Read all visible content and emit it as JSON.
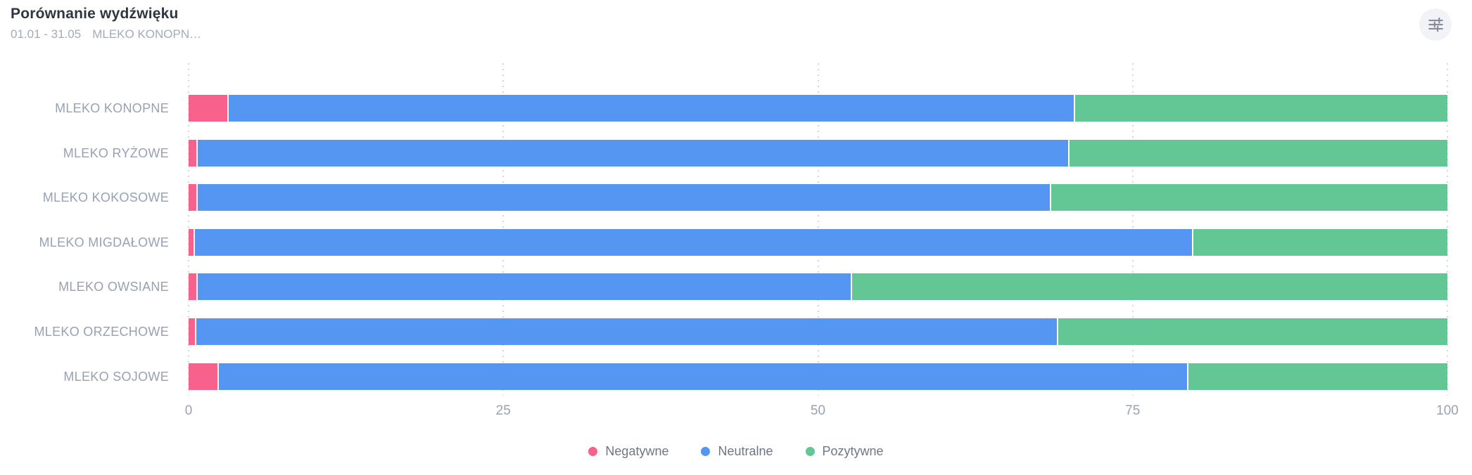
{
  "header": {
    "title": "Porównanie wydźwięku",
    "date_range": "01.01 - 31.05",
    "filter_label": "MLEKO KONOPN…"
  },
  "controls": {
    "settings_icon": "sliders-icon"
  },
  "colors": {
    "negative": "#f8618b",
    "neutral": "#5596f3",
    "positive": "#62c794",
    "gridline": "#d4d8de",
    "axis_text": "#9aa2b2",
    "category_text": "#98a1b3",
    "title_text": "#2f3542",
    "subtitle_text": "#a3abb8",
    "legend_text": "#6e7686",
    "button_bg": "#f1f3f7",
    "icon_color": "#878d98",
    "background": "#ffffff"
  },
  "chart_data": {
    "type": "bar",
    "orientation": "horizontal",
    "stacked": true,
    "title": "Porównanie wydźwięku",
    "categories": [
      "MLEKO KONOPNE",
      "MLEKO RYŻOWE",
      "MLEKO KOKOSOWE",
      "MLEKO MIGDAŁOWE",
      "MLEKO OWSIANE",
      "MLEKO ORZECHOWE",
      "MLEKO SOJOWE"
    ],
    "series": [
      {
        "name": "Negatywne",
        "color": "#f8618b",
        "values": [
          3.1,
          0.6,
          0.6,
          0.4,
          0.6,
          0.5,
          2.3
        ]
      },
      {
        "name": "Neutralne",
        "color": "#5596f3",
        "values": [
          67.2,
          69.3,
          67.8,
          79.3,
          52.0,
          68.5,
          77.0
        ]
      },
      {
        "name": "Pozytywne",
        "color": "#62c794",
        "values": [
          29.7,
          30.1,
          31.6,
          20.3,
          47.4,
          31.0,
          20.7
        ]
      }
    ],
    "x_ticks": [
      0,
      25,
      50,
      75,
      100
    ],
    "xlim": [
      0,
      100
    ],
    "xlabel": "",
    "ylabel": "",
    "grid": "dotted-vertical",
    "legend_position": "bottom"
  },
  "legend": {
    "items": [
      {
        "label": "Negatywne",
        "color": "#f8618b"
      },
      {
        "label": "Neutralne",
        "color": "#5596f3"
      },
      {
        "label": "Pozytywne",
        "color": "#62c794"
      }
    ]
  }
}
